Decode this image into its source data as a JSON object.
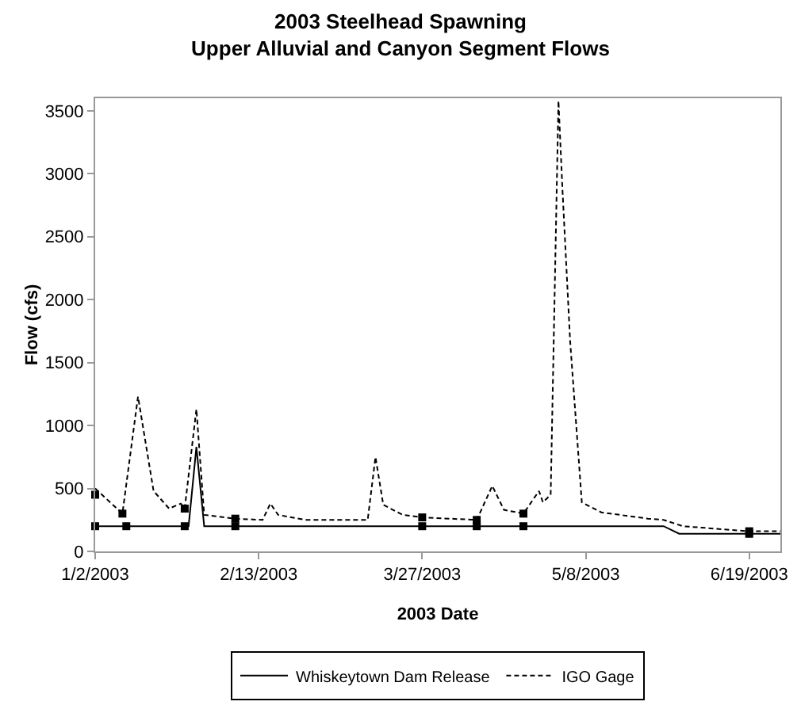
{
  "chart_data": {
    "type": "line",
    "title": "2003 Steelhead Spawning\nUpper Alluvial and Canyon Segment Flows",
    "xlabel": "2003 Date",
    "ylabel": "Flow (cfs)",
    "xlim": [
      "2003-01-02",
      "2003-06-27"
    ],
    "xticks": [
      {
        "value": "2003-01-02",
        "label": "1/2/2003"
      },
      {
        "value": "2003-02-13",
        "label": "2/13/2003"
      },
      {
        "value": "2003-03-27",
        "label": "3/27/2003"
      },
      {
        "value": "2003-05-08",
        "label": "5/8/2003"
      },
      {
        "value": "2003-06-19",
        "label": "6/19/2003"
      }
    ],
    "ylim": [
      0,
      3600
    ],
    "yticks": [
      0,
      500,
      1000,
      1500,
      2000,
      2500,
      3000,
      3500
    ],
    "grid": false,
    "legend": "bottom",
    "series": [
      {
        "name": "Whiskeytown Dam Release",
        "color": "#000000",
        "line_style": "solid",
        "x": [
          "2003-01-02",
          "2003-01-26",
          "2003-01-28",
          "2003-01-30",
          "2003-05-28",
          "2003-06-01",
          "2003-06-27"
        ],
        "values": [
          200,
          200,
          830,
          200,
          200,
          140,
          140
        ]
      },
      {
        "name": "IGO Gage",
        "color": "#000000",
        "line_style": "dashed",
        "x": [
          "2003-01-02",
          "2003-01-09",
          "2003-01-13",
          "2003-01-17",
          "2003-01-21",
          "2003-01-24",
          "2003-01-25",
          "2003-01-28",
          "2003-01-30",
          "2003-02-07",
          "2003-02-14",
          "2003-02-16",
          "2003-02-18",
          "2003-02-25",
          "2003-03-13",
          "2003-03-15",
          "2003-03-17",
          "2003-03-22",
          "2003-03-27",
          "2003-04-10",
          "2003-04-14",
          "2003-04-17",
          "2003-04-22",
          "2003-04-26",
          "2003-04-27",
          "2003-04-29",
          "2003-05-01",
          "2003-05-02",
          "2003-05-04",
          "2003-05-07",
          "2003-05-12",
          "2003-05-24",
          "2003-05-28",
          "2003-06-02",
          "2003-06-19",
          "2003-06-27"
        ],
        "values": [
          500,
          300,
          1230,
          480,
          340,
          380,
          340,
          1130,
          290,
          260,
          250,
          380,
          290,
          250,
          250,
          750,
          370,
          290,
          270,
          250,
          520,
          330,
          300,
          480,
          390,
          450,
          3580,
          2890,
          1670,
          390,
          310,
          260,
          250,
          200,
          160,
          160
        ]
      },
      {
        "type": "scatter",
        "marker": "square",
        "color": "#000000",
        "x": [
          "2003-01-02",
          "2003-01-10",
          "2003-01-25",
          "2003-02-07",
          "2003-03-27",
          "2003-04-10",
          "2003-04-22",
          "2003-06-19",
          "2003-01-02",
          "2003-01-09",
          "2003-01-25",
          "2003-02-07",
          "2003-03-27",
          "2003-04-10",
          "2003-04-22",
          "2003-06-19"
        ],
        "values": [
          200,
          200,
          200,
          200,
          200,
          200,
          200,
          140,
          450,
          300,
          340,
          260,
          270,
          250,
          300,
          160
        ]
      }
    ]
  }
}
